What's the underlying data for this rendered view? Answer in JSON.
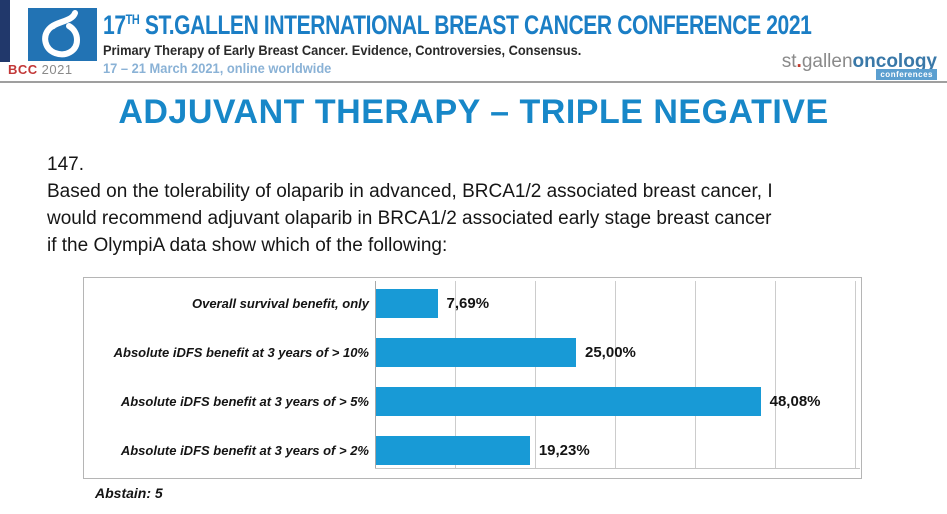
{
  "header": {
    "logo_bcc": "BCC",
    "logo_year": "2021",
    "conference_number": "17",
    "conference_ordinal": "TH",
    "conference_title": " ST.GALLEN INTERNATIONAL BREAST CANCER CONFERENCE 2021",
    "subtitle": "Primary Therapy of Early Breast Cancer. Evidence, Controversies, Consensus.",
    "dates": "17 – 21 March 2021, online worldwide",
    "brand_st": "st",
    "brand_dot": ".",
    "brand_gallen": "gallen",
    "brand_oncology": "oncology",
    "brand_conferences": "conferences"
  },
  "slide": {
    "title": "ADJUVANT THERAPY – TRIPLE NEGATIVE",
    "question_number": "147.",
    "question_lines": [
      "Based on the tolerability of olaparib in advanced, BRCA1/2 associated breast cancer, I",
      "would recommend adjuvant olaparib in BRCA1/2 associated early stage breast cancer",
      "if the OlympiA data show which of the following:"
    ]
  },
  "chart_data": {
    "type": "bar",
    "orientation": "horizontal",
    "title": "",
    "categories": [
      "Overall survival benefit, only",
      "Absolute iDFS benefit at 3 years of > 10%",
      "Absolute iDFS benefit at 3 years of > 5%",
      "Absolute iDFS benefit at 3 years of > 2%"
    ],
    "values": [
      7.69,
      25.0,
      48.08,
      19.23
    ],
    "value_labels": [
      "7,69%",
      "25,00%",
      "48,08%",
      "19,23%"
    ],
    "xlim": [
      0,
      60
    ],
    "gridline_step_pct": 10,
    "grid": true,
    "legend": false,
    "bar_color": "#189ad6",
    "abstain_note": "Abstain: 5"
  },
  "colors": {
    "header_title_blue": "#1b7ec5",
    "dates_light_blue": "#8ab2d6",
    "slide_title_blue": "#1787c8",
    "bar_blue": "#189ad6",
    "logo_square_blue": "#2273b4",
    "bcc_red": "#c23737",
    "brand_gray": "#8a8a8a",
    "brand_oncology_blue": "#3978a8",
    "left_strip_navy": "#21386b"
  }
}
